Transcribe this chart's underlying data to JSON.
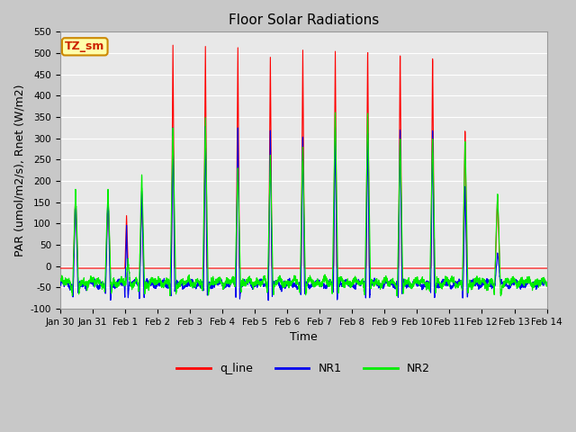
{
  "title": "Floor Solar Radiations",
  "xlabel": "Time",
  "ylabel": "PAR (umol/m2/s), Rnet (W/m2)",
  "ylim": [
    -100,
    550
  ],
  "yticks": [
    -100,
    -50,
    0,
    50,
    100,
    150,
    200,
    250,
    300,
    350,
    400,
    450,
    500,
    550
  ],
  "xlim_days": [
    0,
    15
  ],
  "xtick_labels": [
    "Jan 30",
    "Jan 31",
    "Feb 1",
    "Feb 2",
    "Feb 3",
    "Feb 4",
    "Feb 5",
    "Feb 6",
    "Feb 7",
    "Feb 8",
    "Feb 9",
    "Feb 10",
    "Feb 11",
    "Feb 12",
    "Feb 13",
    "Feb 14"
  ],
  "xtick_positions": [
    0,
    1,
    2,
    3,
    4,
    5,
    6,
    7,
    8,
    9,
    10,
    11,
    12,
    13,
    14,
    15
  ],
  "color_q_line": "#ff0000",
  "color_NR1": "#0000ee",
  "color_NR2": "#00ee00",
  "label_q_line": "q_line",
  "label_NR1": "NR1",
  "label_NR2": "NR2",
  "legend_box_label": "TZ_sm",
  "legend_box_color": "#ffffaa",
  "legend_box_border": "#cc8800",
  "background_color": "#e8e8e8",
  "grid_color": "#ffffff",
  "title_fontsize": 11,
  "axis_fontsize": 9,
  "tick_fontsize": 7.5,
  "legend_fontsize": 9
}
